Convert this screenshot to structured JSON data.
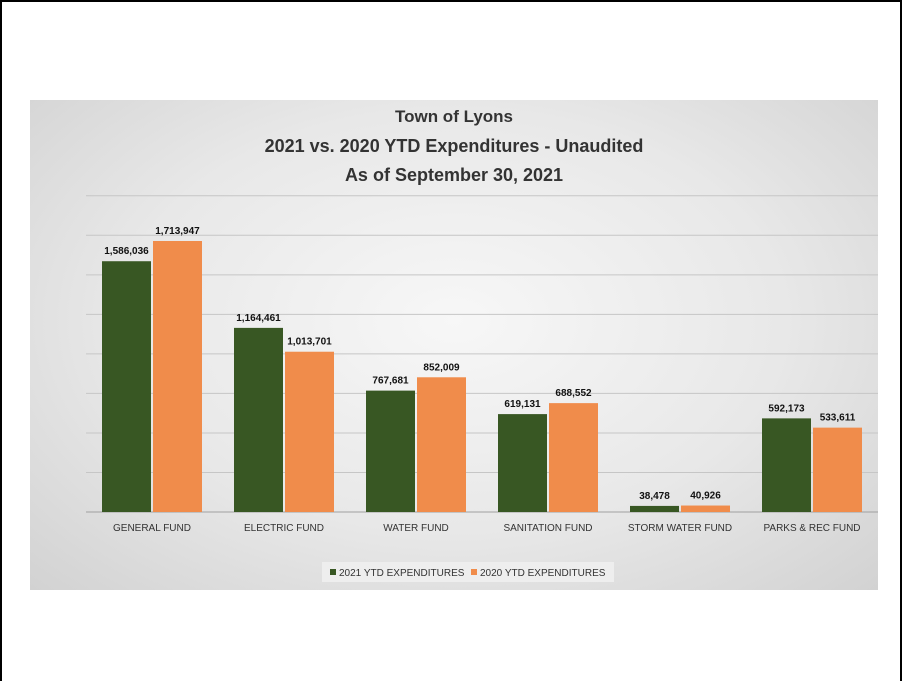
{
  "chart_data": {
    "type": "bar",
    "title": [
      "Town of Lyons",
      "2021 vs. 2020 YTD Expenditures - Unaudited",
      "As of September 30, 2021"
    ],
    "categories": [
      "GENERAL FUND",
      "ELECTRIC FUND",
      "WATER FUND",
      "SANITATION FUND",
      "STORM WATER FUND",
      "PARKS & REC FUND"
    ],
    "series": [
      {
        "name": "2021 YTD EXPENDITURES",
        "color": "#385723",
        "values": [
          1586036,
          1164461,
          767681,
          619131,
          38478,
          592173
        ],
        "labels": [
          "1,586,036",
          "1,164,461",
          "767,681",
          "619,131",
          "38,478",
          "592,173"
        ]
      },
      {
        "name": "2020 YTD EXPENDITURES",
        "color": "#F08C4B",
        "values": [
          1713947,
          1013701,
          852009,
          688552,
          40926,
          533611
        ],
        "labels": [
          "1,713,947",
          "1,013,701",
          "852,009",
          "688,552",
          "40,926",
          "533,611"
        ]
      }
    ],
    "ylim": [
      0,
      2000000
    ],
    "grid": true,
    "legend": "bottom"
  }
}
